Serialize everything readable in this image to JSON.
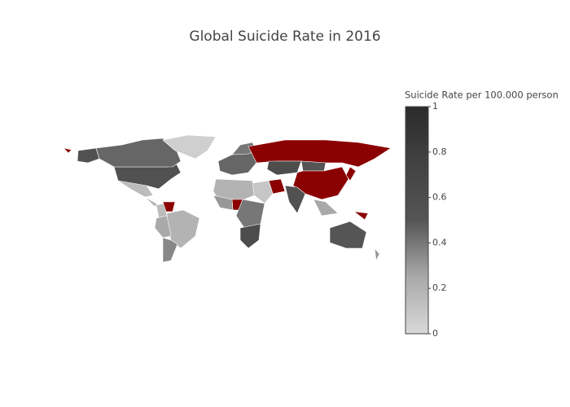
{
  "chart_data": {
    "type": "choropleth",
    "title": "Global Suicide Rate in 2016",
    "colorbar_title": "Suicide Rate per 100.000 person",
    "values": [
      0.55,
      0.45,
      0.05,
      0.15,
      0.2,
      0.15,
      null,
      0.2,
      0.25,
      0.35,
      0.45,
      0.4,
      null,
      0.6,
      0.5,
      null,
      null,
      0.1,
      0.55,
      0.25,
      null,
      null,
      0.5,
      0.3,
      0.2,
      null,
      0.3,
      0.4,
      0.6
    ],
    "zlim": [
      0,
      1
    ],
    "zticks": [
      0,
      0.2,
      0.4,
      0.6,
      0.8,
      1
    ],
    "colorscale": [
      "#d9d9d9",
      "#a9a9a9",
      "#555555",
      "#424242",
      "#2b2b2b"
    ],
    "null_color": "#8b0000"
  }
}
